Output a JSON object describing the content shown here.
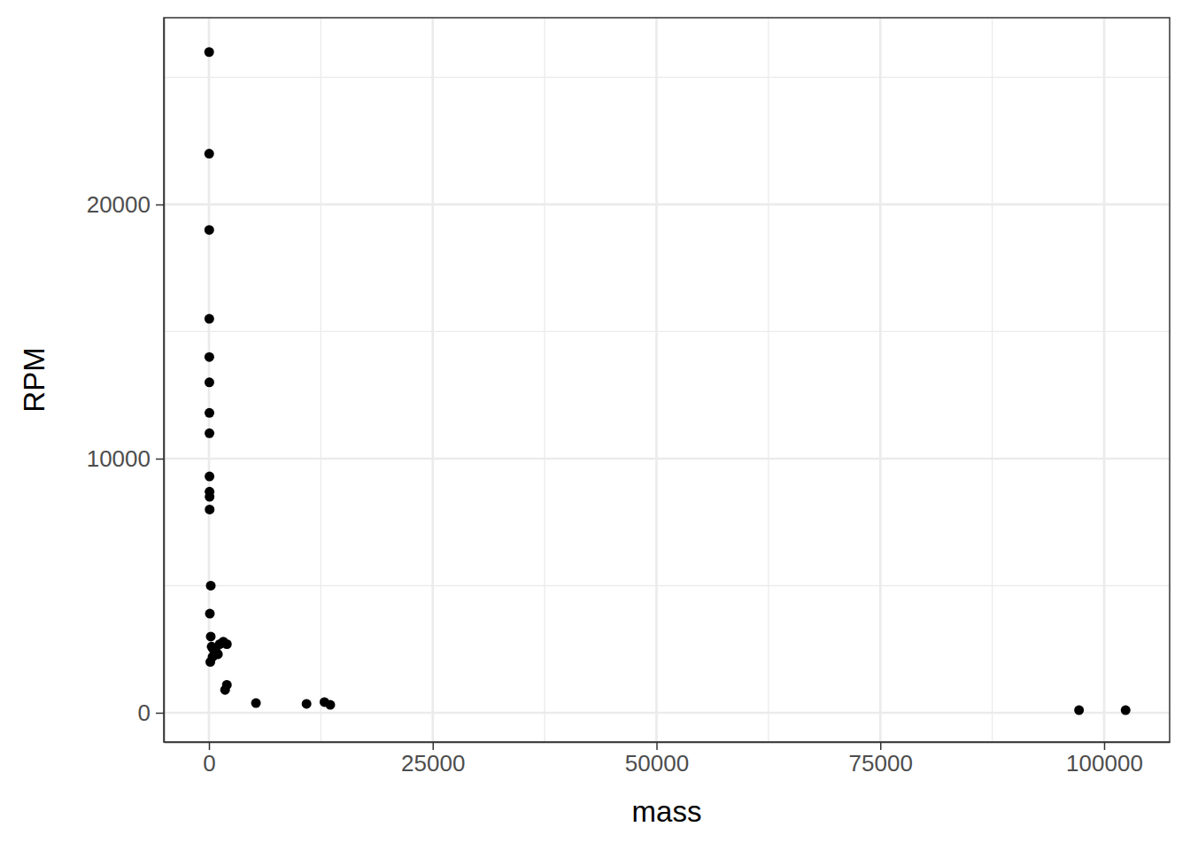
{
  "chart_data": {
    "type": "scatter",
    "x_label": "mass",
    "y_label": "RPM",
    "x": [
      20,
      25,
      30,
      35,
      40,
      45,
      50,
      55,
      60,
      65,
      70,
      75,
      200,
      100,
      200,
      300,
      500,
      800,
      1000,
      1200,
      1600,
      2000,
      150,
      400,
      600,
      800,
      1800,
      2000,
      5250,
      10900,
      12900,
      13550,
      97200,
      102400
    ],
    "values": [
      26000,
      22000,
      19000,
      15500,
      14000,
      13000,
      11800,
      11000,
      9300,
      8700,
      8500,
      8000,
      5000,
      3900,
      3000,
      2600,
      2500,
      2400,
      2300,
      2700,
      2800,
      2700,
      2000,
      2200,
      2500,
      2300,
      900,
      1100,
      380,
      350,
      420,
      310,
      100,
      100
    ],
    "color": "#000000",
    "marker": "circle",
    "xlim": [
      -5045,
      107320
    ],
    "xticks": [
      0,
      25000,
      50000,
      75000,
      100000
    ],
    "ylim": [
      -1150,
      27350
    ],
    "yticks": [
      0,
      10000,
      20000
    ],
    "grid": true
  }
}
